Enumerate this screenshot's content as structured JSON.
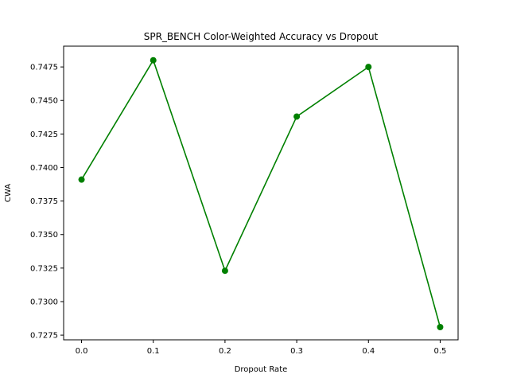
{
  "chart_data": {
    "type": "line",
    "title": "SPR_BENCH Color-Weighted Accuracy vs Dropout",
    "xlabel": "Dropout Rate",
    "ylabel": "CWA",
    "x": [
      0.0,
      0.1,
      0.2,
      0.3,
      0.4,
      0.5
    ],
    "xticks": [
      "0.0",
      "0.1",
      "0.2",
      "0.3",
      "0.4",
      "0.5"
    ],
    "xlim": [
      -0.025,
      0.525
    ],
    "ylim": [
      0.72715,
      0.74905
    ],
    "yticks": [
      "0.7275",
      "0.7300",
      "0.7325",
      "0.7350",
      "0.7375",
      "0.7400",
      "0.7425",
      "0.7450",
      "0.7475"
    ],
    "ytick_values": [
      0.7275,
      0.73,
      0.7325,
      0.735,
      0.7375,
      0.74,
      0.7425,
      0.745,
      0.7475
    ],
    "grid": false,
    "series": [
      {
        "color": "#008000",
        "marker": "circle",
        "values": [
          0.7391,
          0.748,
          0.7323,
          0.7438,
          0.7475,
          0.7281
        ]
      }
    ]
  }
}
